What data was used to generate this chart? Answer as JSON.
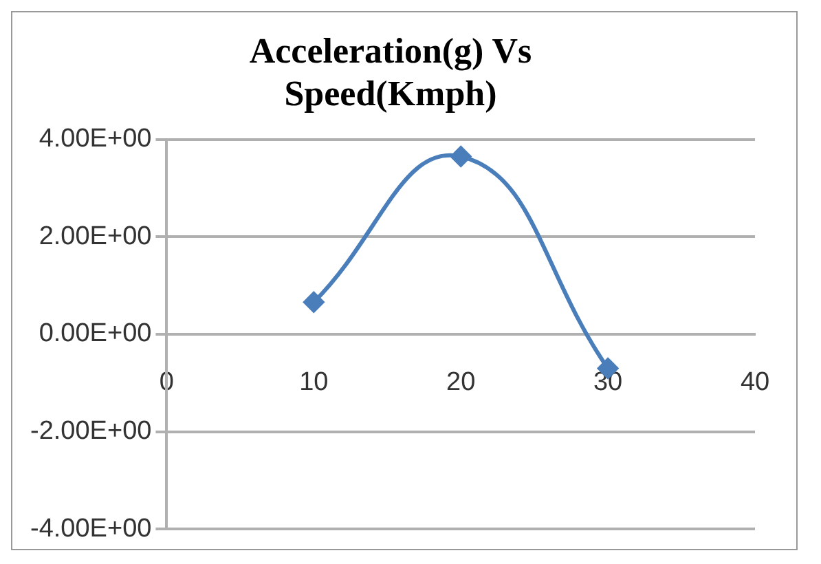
{
  "chart_data": {
    "type": "line",
    "title": [
      "Acceleration(g) Vs",
      "Speed(Kmph)"
    ],
    "x": [
      10,
      20,
      30
    ],
    "series": [
      {
        "color": "#4a7ebb",
        "values": [
          0.66,
          3.65,
          -0.7
        ]
      }
    ],
    "xlim": [
      0,
      40
    ],
    "xticks": [
      0,
      10,
      20,
      30,
      40
    ],
    "ylim": [
      -4,
      4
    ],
    "yticks": [
      {
        "value": -4,
        "label": "-4.00E+00"
      },
      {
        "value": -2,
        "label": "-2.00E+00"
      },
      {
        "value": 0,
        "label": "0.00E+00"
      },
      {
        "value": 2,
        "label": "2.00E+00"
      },
      {
        "value": 4,
        "label": "4.00E+00"
      }
    ],
    "grid": "y",
    "legend": false,
    "marker": "diamond",
    "line_style": "solid"
  }
}
